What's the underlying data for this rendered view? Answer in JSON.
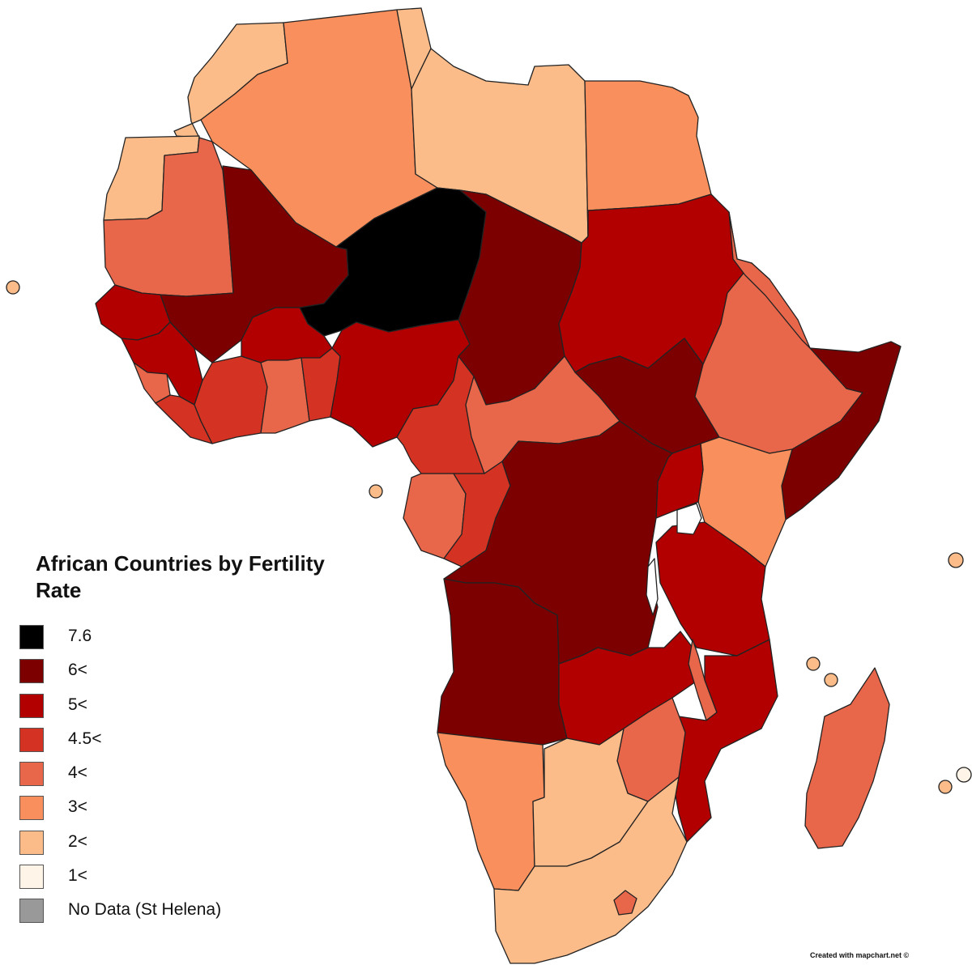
{
  "legend": {
    "title": "African Countries by Fertility Rate",
    "items": [
      {
        "label": "7.6",
        "color": "#000000"
      },
      {
        "label": "6<",
        "color": "#7d0000"
      },
      {
        "label": "5<",
        "color": "#b20000"
      },
      {
        "label": "4.5<",
        "color": "#d43222"
      },
      {
        "label": "4<",
        "color": "#e8664a"
      },
      {
        "label": "3<",
        "color": "#f98f5c"
      },
      {
        "label": "2<",
        "color": "#fbbc8a"
      },
      {
        "label": "1<",
        "color": "#fff4e8"
      },
      {
        "label": "No Data (St Helena)",
        "color": "#999999"
      }
    ]
  },
  "credit": "Created with mapchart.net ©",
  "regions": [
    {
      "id": "morocco",
      "class": 6
    },
    {
      "id": "western-sahara",
      "class": 6
    },
    {
      "id": "algeria",
      "class": 5
    },
    {
      "id": "tunisia",
      "class": 6
    },
    {
      "id": "libya",
      "class": 6
    },
    {
      "id": "egypt",
      "class": 5
    },
    {
      "id": "mauritania",
      "class": 4
    },
    {
      "id": "mali",
      "class": 1
    },
    {
      "id": "niger",
      "class": 0
    },
    {
      "id": "chad",
      "class": 1
    },
    {
      "id": "sudan",
      "class": 2
    },
    {
      "id": "senegal",
      "class": 2
    },
    {
      "id": "guinea",
      "class": 2
    },
    {
      "id": "burkina-faso",
      "class": 2
    },
    {
      "id": "nigeria",
      "class": 2
    },
    {
      "id": "ivory-coast",
      "class": 3
    },
    {
      "id": "ghana",
      "class": 4
    },
    {
      "id": "benin",
      "class": 3
    },
    {
      "id": "sierra-leone",
      "class": 4
    },
    {
      "id": "liberia",
      "class": 3
    },
    {
      "id": "cameroon",
      "class": 3
    },
    {
      "id": "car",
      "class": 4
    },
    {
      "id": "south-sudan",
      "class": 1
    },
    {
      "id": "ethiopia",
      "class": 4
    },
    {
      "id": "eritrea",
      "class": 4
    },
    {
      "id": "somalia",
      "class": 1
    },
    {
      "id": "kenya",
      "class": 5
    },
    {
      "id": "uganda",
      "class": 2
    },
    {
      "id": "gabon",
      "class": 4
    },
    {
      "id": "congo",
      "class": 3
    },
    {
      "id": "drc",
      "class": 1
    },
    {
      "id": "angola",
      "class": 1
    },
    {
      "id": "tanzania",
      "class": 2
    },
    {
      "id": "zambia",
      "class": 2
    },
    {
      "id": "malawi",
      "class": 4
    },
    {
      "id": "mozambique",
      "class": 2
    },
    {
      "id": "zimbabwe",
      "class": 4
    },
    {
      "id": "namibia",
      "class": 5
    },
    {
      "id": "botswana",
      "class": 6
    },
    {
      "id": "south-africa",
      "class": 6
    },
    {
      "id": "lesotho",
      "class": 4
    },
    {
      "id": "madagascar",
      "class": 4
    }
  ]
}
